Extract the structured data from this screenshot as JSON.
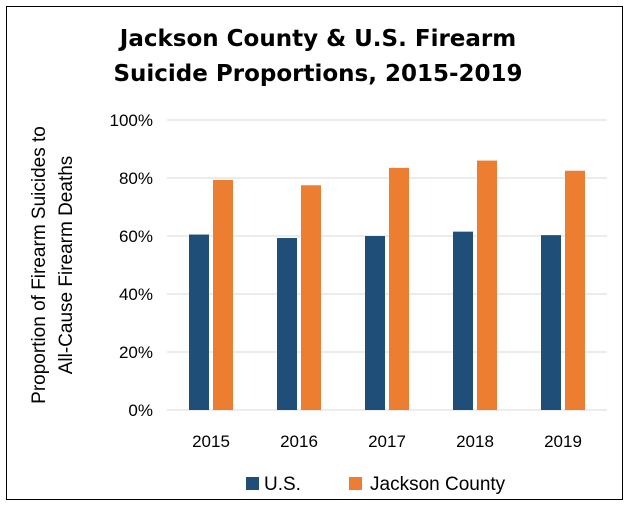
{
  "chart_data": {
    "type": "bar",
    "title_lines": [
      "Jackson County & U.S. Firearm",
      "Suicide Proportions, 2015-2019"
    ],
    "ylabel_lines": [
      "Proportion of Firearm Suicides to",
      "All-Cause Firearm Deaths"
    ],
    "xlabel": "",
    "categories": [
      "2015",
      "2016",
      "2017",
      "2018",
      "2019"
    ],
    "ylim": [
      0,
      100
    ],
    "y_ticks": [
      "0%",
      "20%",
      "40%",
      "60%",
      "80%",
      "100%"
    ],
    "y_tick_values": [
      0,
      20,
      40,
      60,
      80,
      100
    ],
    "grid": true,
    "legend_position": "bottom",
    "series": [
      {
        "name": "U.S.",
        "color": "#1f4e79",
        "values": [
          60.5,
          59.3,
          60.0,
          61.5,
          60.3
        ]
      },
      {
        "name": "Jackson County",
        "color": "#ed7d31",
        "values": [
          79.3,
          77.5,
          83.5,
          86.0,
          82.5
        ]
      }
    ]
  }
}
